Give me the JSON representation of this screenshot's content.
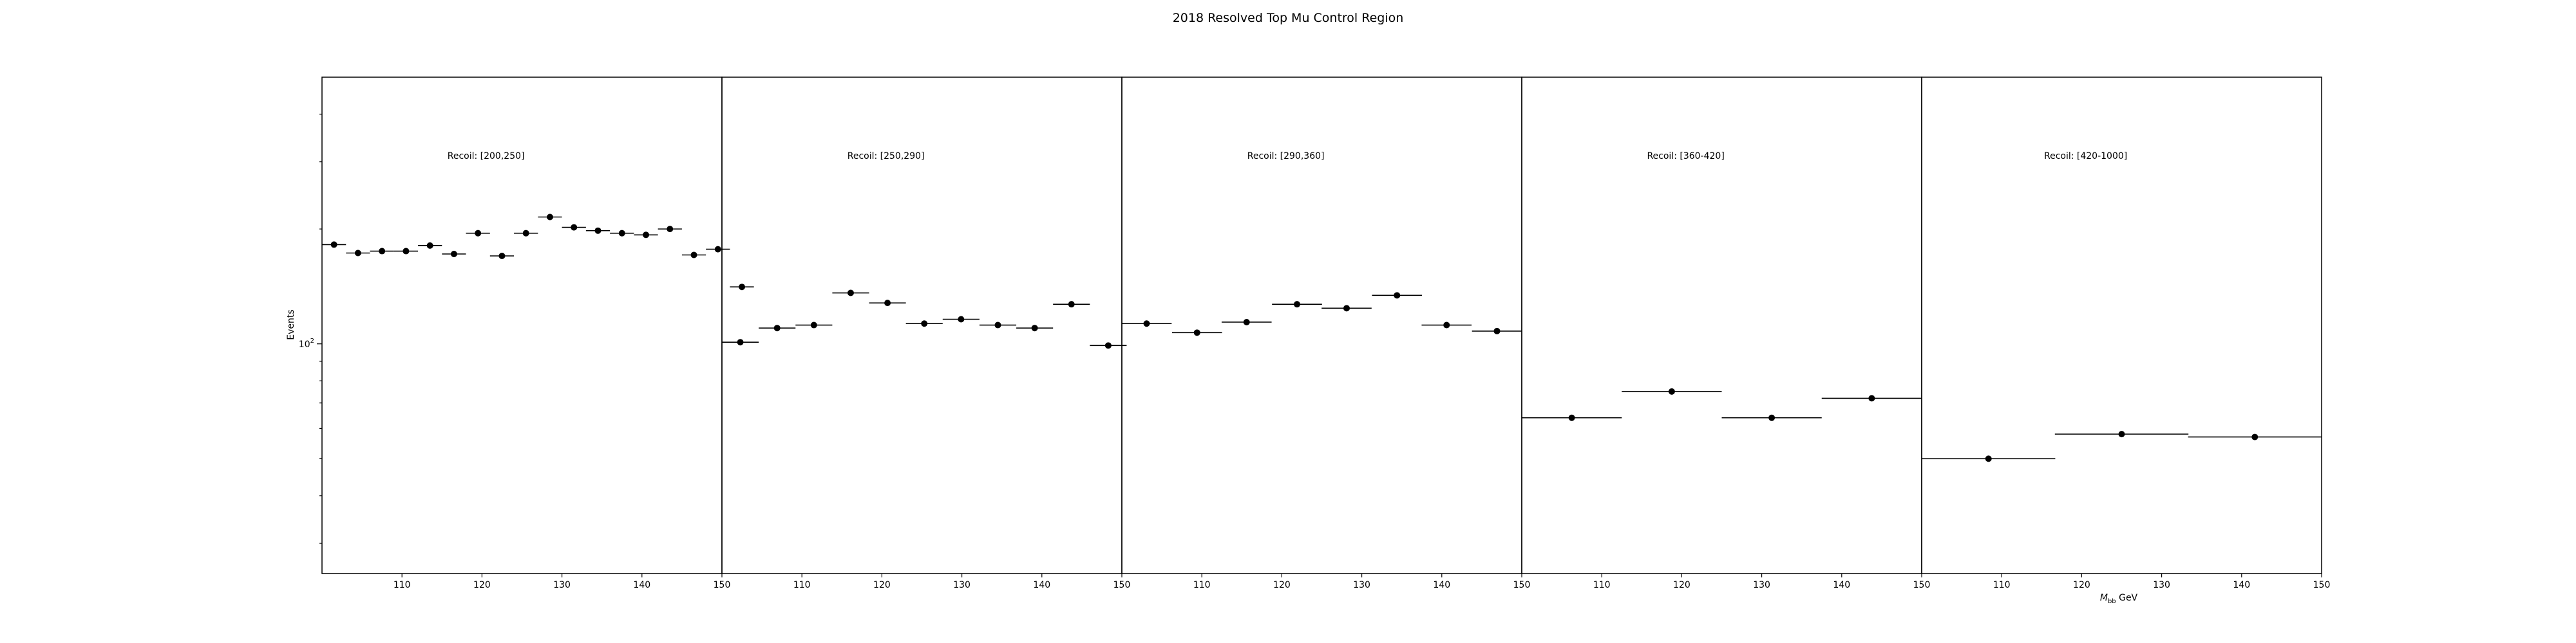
{
  "chart_data": {
    "type": "scatter",
    "title": "2018 Resolved Top Mu Control Region",
    "ylabel": "Events",
    "xlabel_main": "M",
    "xlabel_sub": "bb",
    "xlabel_unit": " GeV",
    "yscale": "log",
    "ylim": [
      25,
      500
    ],
    "y_major_ticks": [
      {
        "value": 100,
        "base": "10",
        "exp": "2"
      }
    ],
    "y_minor_ticks": [
      30,
      40,
      50,
      60,
      70,
      80,
      90,
      200,
      300,
      400
    ],
    "xlim": [
      100,
      150
    ],
    "x_ticks": [
      110,
      120,
      130,
      140,
      150
    ],
    "grid": false,
    "panels": [
      {
        "label": "Recoil: [200,250]",
        "bin_width": 3,
        "points": [
          {
            "x": 101.5,
            "y": 182
          },
          {
            "x": 104.5,
            "y": 173
          },
          {
            "x": 107.5,
            "y": 175
          },
          {
            "x": 110.5,
            "y": 175
          },
          {
            "x": 113.5,
            "y": 181
          },
          {
            "x": 116.5,
            "y": 172
          },
          {
            "x": 119.5,
            "y": 195
          },
          {
            "x": 122.5,
            "y": 170
          },
          {
            "x": 125.5,
            "y": 195
          },
          {
            "x": 128.5,
            "y": 215
          },
          {
            "x": 131.5,
            "y": 202
          },
          {
            "x": 134.5,
            "y": 198
          },
          {
            "x": 137.5,
            "y": 195
          },
          {
            "x": 140.5,
            "y": 193
          },
          {
            "x": 143.5,
            "y": 200
          },
          {
            "x": 146.5,
            "y": 171
          },
          {
            "x": 149.5,
            "y": 177
          },
          {
            "x": 152.5,
            "y": 141
          }
        ]
      },
      {
        "label": "Recoil: [250,290]",
        "bin_width": 4.6,
        "points": [
          {
            "x": 102.3,
            "y": 101
          },
          {
            "x": 106.9,
            "y": 110
          },
          {
            "x": 111.5,
            "y": 112
          },
          {
            "x": 116.1,
            "y": 136
          },
          {
            "x": 120.7,
            "y": 128
          },
          {
            "x": 125.3,
            "y": 113
          },
          {
            "x": 129.9,
            "y": 116
          },
          {
            "x": 134.5,
            "y": 112
          },
          {
            "x": 139.1,
            "y": 110
          },
          {
            "x": 143.7,
            "y": 127
          },
          {
            "x": 148.3,
            "y": 99
          }
        ]
      },
      {
        "label": "Recoil: [290,360]",
        "bin_width": 6.25,
        "points": [
          {
            "x": 103.1,
            "y": 113
          },
          {
            "x": 109.4,
            "y": 107
          },
          {
            "x": 115.6,
            "y": 114
          },
          {
            "x": 121.9,
            "y": 127
          },
          {
            "x": 128.1,
            "y": 124
          },
          {
            "x": 134.4,
            "y": 134
          },
          {
            "x": 140.6,
            "y": 112
          },
          {
            "x": 146.9,
            "y": 108
          }
        ]
      },
      {
        "label": "Recoil: [360-420]",
        "bin_width": 12.5,
        "points": [
          {
            "x": 106.25,
            "y": 64
          },
          {
            "x": 118.75,
            "y": 75
          },
          {
            "x": 131.25,
            "y": 64
          },
          {
            "x": 143.75,
            "y": 72
          }
        ]
      },
      {
        "label": "Recoil: [420-1000]",
        "bin_width": 16.7,
        "points": [
          {
            "x": 108.35,
            "y": 50
          },
          {
            "x": 125.0,
            "y": 58
          },
          {
            "x": 141.65,
            "y": 57
          }
        ]
      }
    ]
  }
}
